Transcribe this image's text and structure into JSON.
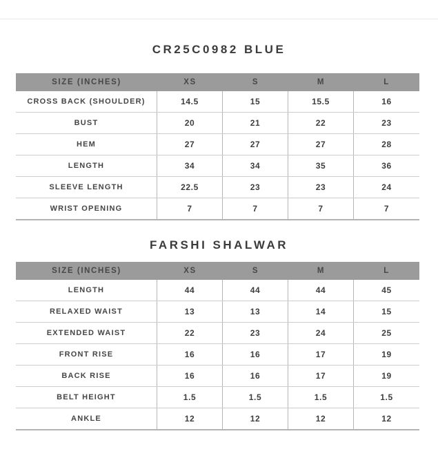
{
  "page": {
    "title_top": "CR25C0982 BLUE",
    "title_shalwar": "FARSHI SHALWAR"
  },
  "colors": {
    "header_bar_bg": "#9b9b9b",
    "header_text": "#474747",
    "body_text": "#3d3d3d",
    "row_divider": "#cbcbcb",
    "column_divider": "#b5b5b5",
    "table_bottom_border": "#b3b3b3",
    "top_divider": "#e7e7e7",
    "background": "#ffffff"
  },
  "tables": [
    {
      "name": "top-garment-size-table",
      "header": [
        "SIZE (INCHES)",
        "XS",
        "S",
        "M",
        "L"
      ],
      "rows": [
        {
          "label": "CROSS BACK (SHOULDER)",
          "values": [
            "14.5",
            "15",
            "15.5",
            "16"
          ]
        },
        {
          "label": "BUST",
          "values": [
            "20",
            "21",
            "22",
            "23"
          ]
        },
        {
          "label": "HEM",
          "values": [
            "27",
            "27",
            "27",
            "28"
          ]
        },
        {
          "label": "LENGTH",
          "values": [
            "34",
            "34",
            "35",
            "36"
          ]
        },
        {
          "label": "SLEEVE LENGTH",
          "values": [
            "22.5",
            "23",
            "23",
            "24"
          ]
        },
        {
          "label": "WRIST OPENING",
          "values": [
            "7",
            "7",
            "7",
            "7"
          ]
        }
      ]
    },
    {
      "name": "farshi-shalwar-size-table",
      "header": [
        "SIZE (INCHES)",
        "XS",
        "S",
        "M",
        "L"
      ],
      "rows": [
        {
          "label": "LENGTH",
          "values": [
            "44",
            "44",
            "44",
            "45"
          ]
        },
        {
          "label": "RELAXED WAIST",
          "values": [
            "13",
            "13",
            "14",
            "15"
          ]
        },
        {
          "label": "EXTENDED WAIST",
          "values": [
            "22",
            "23",
            "24",
            "25"
          ]
        },
        {
          "label": "FRONT RISE",
          "values": [
            "16",
            "16",
            "17",
            "19"
          ]
        },
        {
          "label": "BACK RISE",
          "values": [
            "16",
            "16",
            "17",
            "19"
          ]
        },
        {
          "label": "BELT HEIGHT",
          "values": [
            "1.5",
            "1.5",
            "1.5",
            "1.5"
          ]
        },
        {
          "label": "ANKLE",
          "values": [
            "12",
            "12",
            "12",
            "12"
          ]
        }
      ]
    }
  ]
}
